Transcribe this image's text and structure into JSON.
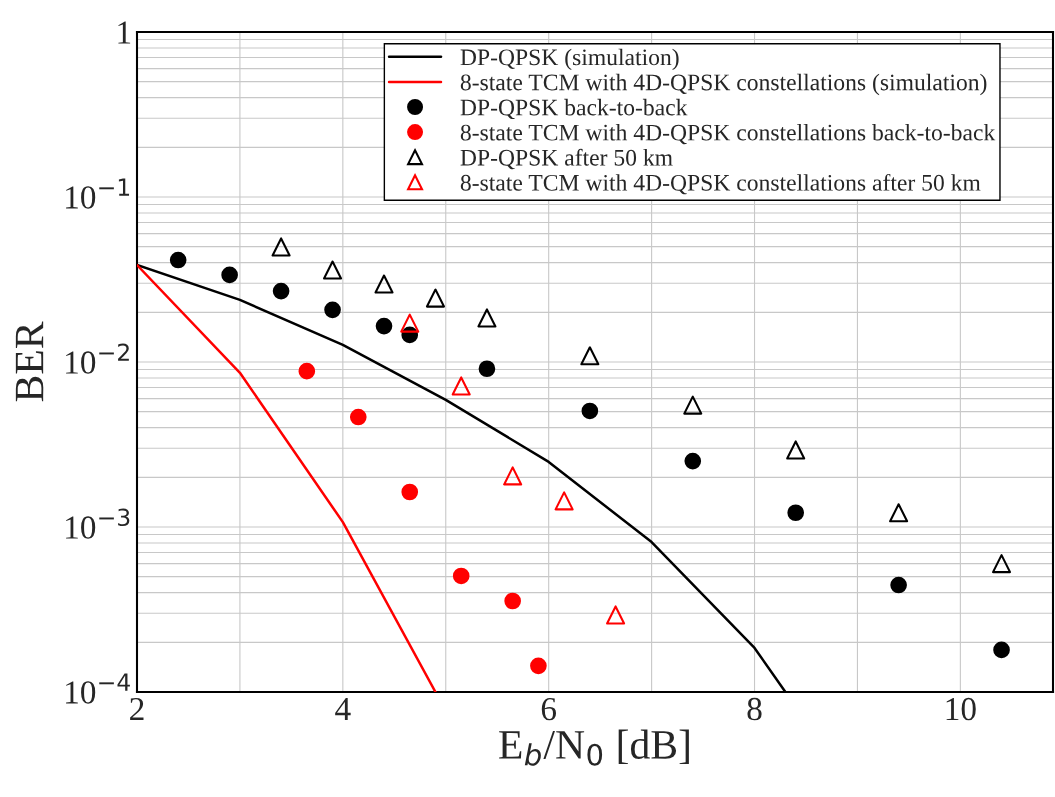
{
  "chart_data": {
    "type": "line",
    "xlabel": "E$_{b}$/N$_{0}$ [dB]",
    "ylabel": "BER",
    "log": "y",
    "grid": true,
    "legend": "top right",
    "xlim": [
      2,
      10.9
    ],
    "xticks": [
      2,
      {
        "value": 3,
        "label": null
      },
      4,
      {
        "value": 5,
        "label": null
      },
      6,
      {
        "value": 7,
        "label": null
      },
      8,
      {
        "value": 9,
        "label": null
      },
      10
    ],
    "ylim": [
      0.0001,
      1
    ],
    "yticks": [
      {
        "value": 0.0001,
        "label": "10$^{−4}$"
      },
      {
        "value": 0.001,
        "label": "10$^{−3}$"
      },
      {
        "value": 0.01,
        "label": "10$^{−2}$"
      },
      {
        "value": 0.1,
        "label": "10$^{−1}$"
      },
      1
    ],
    "series": [
      {
        "name": "DP-QPSK (simulation)",
        "color": "#000000",
        "marker": "none",
        "x": [
          2,
          3,
          4,
          5,
          6,
          7,
          8,
          8.3
        ],
        "values": [
          0.0387,
          0.0238,
          0.0127,
          0.0059,
          0.00248,
          0.00081,
          0.000185,
          0.0001
        ]
      },
      {
        "name": "8-state TCM with 4D-QPSK constellations (simulation)",
        "color": "#ff0000",
        "marker": "none",
        "x": [
          2,
          3,
          4,
          4.9
        ],
        "values": [
          0.0387,
          0.0086,
          0.00107,
          0.0001
        ]
      },
      {
        "name": "DP-QPSK back-to-back",
        "type": "scatter",
        "color": "#000000",
        "marker": "circle",
        "x": [
          2.4,
          2.9,
          3.4,
          3.9,
          4.4,
          4.65,
          5.4,
          6.4,
          7.4,
          8.4,
          9.4,
          10.4
        ],
        "values": [
          0.0415,
          0.0337,
          0.0269,
          0.0207,
          0.0165,
          0.0146,
          0.0091,
          0.00505,
          0.00251,
          0.00122,
          0.000445,
          0.00018
        ]
      },
      {
        "name": "8-state TCM with 4D-QPSK constellations back-to-back",
        "type": "scatter",
        "color": "#ff0000",
        "marker": "circle",
        "x": [
          3.65,
          4.15,
          4.65,
          5.15,
          5.65,
          5.9
        ],
        "values": [
          0.0088,
          0.00464,
          0.00163,
          0.000505,
          0.000356,
          0.000144
        ]
      },
      {
        "name": "DP-QPSK after 50 km",
        "type": "scatter",
        "color": "#000000",
        "marker": "triangle",
        "x": [
          3.4,
          3.9,
          4.4,
          4.9,
          5.4,
          6.4,
          7.4,
          8.4,
          9.4,
          10.4
        ],
        "values": [
          0.0498,
          0.0361,
          0.0297,
          0.0244,
          0.0185,
          0.0109,
          0.00548,
          0.00293,
          0.00122,
          0.0006
        ]
      },
      {
        "name": "8-state TCM with 4D-QPSK constellations after 50 km",
        "type": "scatter",
        "color": "#ff0000",
        "marker": "triangle",
        "x": [
          4.65,
          5.15,
          5.65,
          6.15,
          6.65
        ],
        "values": [
          0.0172,
          0.00716,
          0.00204,
          0.00144,
          0.000293
        ]
      }
    ]
  }
}
